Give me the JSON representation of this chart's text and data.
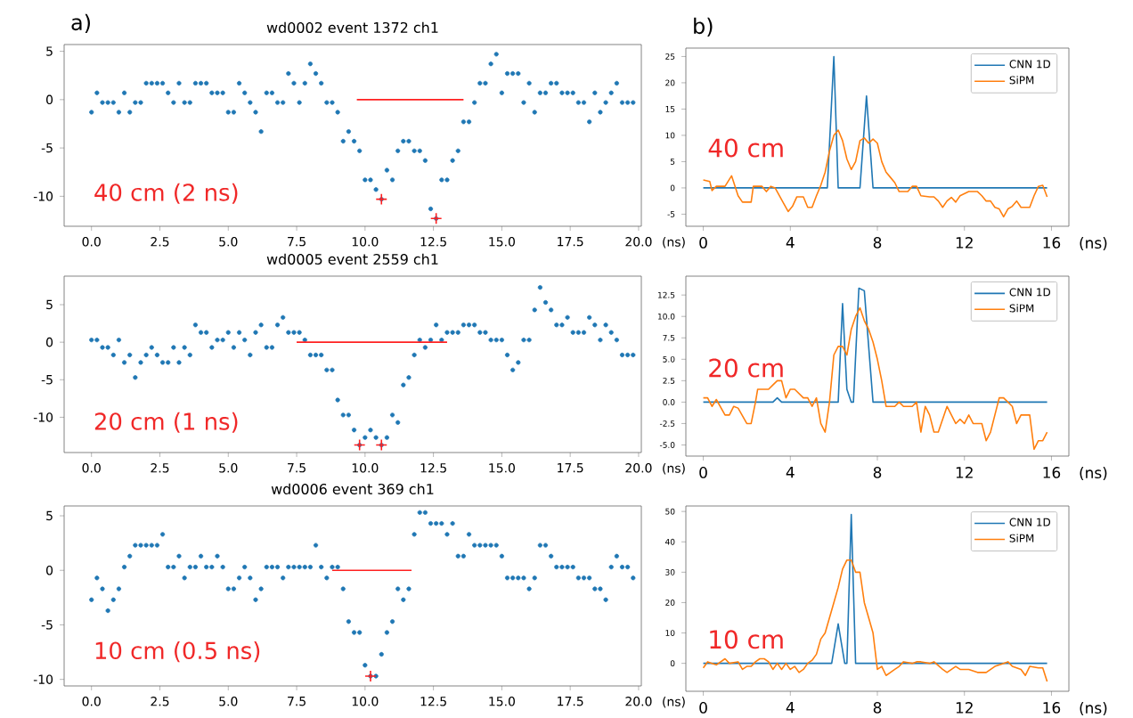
{
  "chart_data": [
    {
      "type": "scatter",
      "title": "wd0002 event 1372  ch1",
      "xlabel": "(ns)",
      "xlim": [
        -1,
        20.1
      ],
      "ylim": [
        -13.1,
        5.7
      ],
      "xticks": [
        {
          "value": 0,
          "label": "0.0"
        },
        2.5,
        {
          "value": 5,
          "label": "5.0"
        },
        7.5,
        {
          "value": 10,
          "label": "10.0"
        },
        12.5,
        {
          "value": 15,
          "label": "15.0"
        },
        17.5,
        {
          "value": 20,
          "label": "20.0"
        }
      ],
      "yticks": [
        -10,
        -5,
        0,
        5
      ],
      "x": [
        0,
        0.2,
        0.4,
        0.6,
        0.8,
        1,
        1.2,
        1.4,
        1.6,
        1.8,
        2,
        2.2,
        2.4,
        2.6,
        2.8,
        3,
        3.2,
        3.4,
        3.6,
        3.8,
        4,
        4.2,
        4.4,
        4.6,
        4.8,
        5,
        5.2,
        5.4,
        5.6,
        5.8,
        6,
        6.2,
        6.4,
        6.6,
        6.8,
        7,
        7.2,
        7.4,
        7.6,
        7.8,
        8,
        8.2,
        8.4,
        8.6,
        8.8,
        9,
        9.2,
        9.4,
        9.6,
        9.8,
        10,
        10.2,
        10.4,
        10.6,
        10.8,
        11,
        11.2,
        11.4,
        11.6,
        11.8,
        12,
        12.2,
        12.4,
        12.6,
        12.8,
        13,
        13.2,
        13.4,
        13.6,
        13.8,
        14,
        14.2,
        14.4,
        14.6,
        14.8,
        15,
        15.2,
        15.4,
        15.6,
        15.8,
        16,
        16.2,
        16.4,
        16.6,
        16.8,
        17,
        17.2,
        17.4,
        17.6,
        17.8,
        18,
        18.2,
        18.4,
        18.6,
        18.8,
        19,
        19.2,
        19.4,
        19.6,
        19.8
      ],
      "series": [
        {
          "color": "#1f77b4",
          "marker": "circle",
          "values": [
            -1.3,
            0.7,
            -0.3,
            -0.3,
            -0.3,
            -1.3,
            0.7,
            -1.3,
            -0.3,
            -0.3,
            1.7,
            1.7,
            1.7,
            1.7,
            0.7,
            -0.3,
            1.7,
            -0.3,
            -0.3,
            1.7,
            1.7,
            1.7,
            0.7,
            0.7,
            0.7,
            -1.3,
            -1.3,
            1.7,
            0.7,
            -0.3,
            -1.3,
            -3.3,
            0.7,
            0.7,
            -0.3,
            -0.3,
            2.7,
            1.7,
            -0.3,
            1.7,
            3.7,
            2.7,
            1.7,
            -0.3,
            -0.3,
            -1.3,
            -4.3,
            -3.3,
            -4.3,
            -5.3,
            -8.3,
            -8.3,
            -9.3,
            -10.3,
            -7.3,
            -8.3,
            -5.3,
            -4.3,
            -4.3,
            -5.3,
            -5.3,
            -6.3,
            -11.3,
            -12.3,
            -8.3,
            -8.3,
            -6.3,
            -5.3,
            -2.3,
            -2.3,
            -0.3,
            1.7,
            1.7,
            3.7,
            4.7,
            0.7,
            2.7,
            2.7,
            2.7,
            -0.3,
            1.7,
            -1.3,
            0.7,
            0.7,
            1.7,
            1.7,
            0.7,
            0.7,
            0.7,
            -0.3,
            -0.3,
            -2.3,
            0.7,
            -1.3,
            -0.3,
            0.7,
            1.7,
            -0.3,
            -0.3,
            -0.3
          ]
        },
        {
          "type": "line",
          "color": "#ff2020",
          "x": [
            9.7,
            13.6
          ],
          "values": [
            0,
            0
          ]
        },
        {
          "color": "#ff2020",
          "marker": "cross",
          "x": [
            10.6,
            12.6
          ],
          "values": [
            -10.3,
            -12.3
          ]
        }
      ],
      "annotations": [
        "a)",
        "40 cm (2 ns)"
      ]
    },
    {
      "type": "line",
      "xlabel": "(ns)",
      "xlim": [
        -0.8,
        16.8
      ],
      "ylim": [
        -7.3,
        26.6
      ],
      "xticks": [
        0,
        4,
        8,
        12,
        16
      ],
      "yticks": [
        -5,
        0,
        5,
        10,
        15,
        20,
        25
      ],
      "legend": "top right",
      "series": [
        {
          "name": "CNN 1D",
          "color": "#1f77b4",
          "x": [
            0,
            5.7,
            6.0,
            6.2,
            7.2,
            7.5,
            7.8,
            15.8
          ],
          "values": [
            0,
            0,
            25,
            0,
            0,
            17.5,
            0,
            0
          ]
        },
        {
          "name": "SiPM",
          "color": "#ff7f0e",
          "x": [
            0,
            0.3,
            0.4,
            0.6,
            1.0,
            1.3,
            1.6,
            1.8,
            2.2,
            2.3,
            2.7,
            2.9,
            3.1,
            3.3,
            3.7,
            3.9,
            4.1,
            4.3,
            4.6,
            4.8,
            5.0,
            5.2,
            5.4,
            5.6,
            5.8,
            6.0,
            6.2,
            6.4,
            6.6,
            6.8,
            7.0,
            7.2,
            7.4,
            7.6,
            7.8,
            8.0,
            8.2,
            8.4,
            8.6,
            8.8,
            9.0,
            9.4,
            9.6,
            9.8,
            10.0,
            10.4,
            10.6,
            10.8,
            11.0,
            11.2,
            11.4,
            11.6,
            11.8,
            12.2,
            12.6,
            12.8,
            13.0,
            13.2,
            13.4,
            13.6,
            13.8,
            14.0,
            14.2,
            14.4,
            14.6,
            15.0,
            15.2,
            15.4,
            15.6,
            15.8
          ],
          "values": [
            1.5,
            1.2,
            -0.5,
            0.3,
            0.3,
            2.3,
            -1.5,
            -2.7,
            -2.7,
            0.3,
            0.3,
            -0.7,
            0.3,
            0,
            -3,
            -4.5,
            -3.5,
            -1.7,
            -1.7,
            -3.7,
            -3.7,
            -1.5,
            0.5,
            3,
            7,
            10,
            11,
            9,
            5.5,
            3.5,
            5,
            9,
            9.5,
            8.5,
            9.3,
            8.5,
            5,
            3,
            2,
            1,
            -0.7,
            -0.7,
            0.3,
            0.3,
            -1.5,
            -1.7,
            -1.7,
            -2.5,
            -3.7,
            -2.5,
            -1.8,
            -2.7,
            -1.5,
            -0.7,
            -0.7,
            -1.5,
            -2.5,
            -2.5,
            -3.7,
            -4,
            -5.5,
            -4,
            -3.5,
            -2.5,
            -3.7,
            -3.7,
            -1.5,
            0.3,
            0.5,
            -1.7
          ]
        }
      ],
      "annotations": [
        "b)",
        "40 cm"
      ]
    },
    {
      "type": "scatter",
      "title": "wd0005 event 2559  ch1",
      "xlabel": "(ns)",
      "xlim": [
        -1,
        20.1
      ],
      "ylim": [
        -14.7,
        8.8
      ],
      "xticks": [
        {
          "value": 0,
          "label": "0.0"
        },
        2.5,
        {
          "value": 5,
          "label": "5.0"
        },
        7.5,
        {
          "value": 10,
          "label": "10.0"
        },
        12.5,
        {
          "value": 15,
          "label": "15.0"
        },
        17.5,
        {
          "value": 20,
          "label": "20.0"
        }
      ],
      "yticks": [
        -10,
        -5,
        0,
        5
      ],
      "x": [
        0,
        0.2,
        0.4,
        0.6,
        0.8,
        1,
        1.2,
        1.4,
        1.6,
        1.8,
        2,
        2.2,
        2.4,
        2.6,
        2.8,
        3,
        3.2,
        3.4,
        3.6,
        3.8,
        4,
        4.2,
        4.4,
        4.6,
        4.8,
        5,
        5.2,
        5.4,
        5.6,
        5.8,
        6,
        6.2,
        6.4,
        6.6,
        6.8,
        7,
        7.2,
        7.4,
        7.6,
        7.8,
        8,
        8.2,
        8.4,
        8.6,
        8.8,
        9,
        9.2,
        9.4,
        9.6,
        9.8,
        10,
        10.2,
        10.4,
        10.6,
        10.8,
        11,
        11.2,
        11.4,
        11.6,
        11.8,
        12,
        12.2,
        12.4,
        12.6,
        12.8,
        13,
        13.2,
        13.4,
        13.6,
        13.8,
        14,
        14.2,
        14.4,
        14.6,
        14.8,
        15,
        15.2,
        15.4,
        15.6,
        15.8,
        16,
        16.2,
        16.4,
        16.6,
        16.8,
        17,
        17.2,
        17.4,
        17.6,
        17.8,
        18,
        18.2,
        18.4,
        18.6,
        18.8,
        19,
        19.2,
        19.4,
        19.6,
        19.8
      ],
      "series": [
        {
          "color": "#1f77b4",
          "marker": "circle",
          "values": [
            0.3,
            0.3,
            -0.7,
            -0.7,
            -1.7,
            0.3,
            -2.7,
            -1.7,
            -4.7,
            -2.7,
            -1.7,
            -0.7,
            -1.7,
            -2.7,
            -2.7,
            -0.7,
            -2.7,
            -0.7,
            -1.7,
            2.3,
            1.3,
            1.3,
            -0.7,
            0.3,
            0.3,
            1.3,
            -0.7,
            1.3,
            0.3,
            -1.7,
            1.3,
            2.3,
            -0.7,
            -0.7,
            2.3,
            3.3,
            1.3,
            1.3,
            1.3,
            0.3,
            -1.7,
            -1.7,
            -1.7,
            -3.7,
            -3.7,
            -7.7,
            -9.7,
            -9.7,
            -11.7,
            -13.7,
            -12.7,
            -11.7,
            -12.7,
            -13.7,
            -12.7,
            -9.7,
            -10.7,
            -5.7,
            -4.7,
            -1.7,
            0.3,
            -0.7,
            0.3,
            2.3,
            0.3,
            1.3,
            1.3,
            1.3,
            2.3,
            2.3,
            2.3,
            1.3,
            1.3,
            0.3,
            0.3,
            0.3,
            -1.7,
            -3.7,
            -2.7,
            0.3,
            0.3,
            4.3,
            7.3,
            5.3,
            4.3,
            2.3,
            2.3,
            3.3,
            1.3,
            1.3,
            1.3,
            3.3,
            2.3,
            0.3,
            2.3,
            1.3,
            0.3,
            -1.7,
            -1.7,
            -1.7
          ]
        },
        {
          "type": "line",
          "color": "#ff2020",
          "x": [
            7.5,
            13.0
          ],
          "values": [
            0,
            0
          ]
        },
        {
          "color": "#ff2020",
          "marker": "cross",
          "x": [
            9.8,
            10.6
          ],
          "values": [
            -13.7,
            -13.7
          ]
        }
      ],
      "annotations": [
        "20 cm (1 ns)"
      ]
    },
    {
      "type": "line",
      "xlabel": "(ns)",
      "xlim": [
        -0.8,
        16.8
      ],
      "ylim": [
        -6.3,
        14.7
      ],
      "xticks": [
        0,
        4,
        8,
        12,
        16
      ],
      "yticks": [
        {
          "value": -5,
          "label": "-5.0"
        },
        -2.5,
        {
          "value": 0,
          "label": "0.0"
        },
        2.5,
        {
          "value": 5,
          "label": "5.0"
        },
        7.5,
        {
          "value": 10,
          "label": "10.0"
        },
        12.5
      ],
      "legend": "top right",
      "series": [
        {
          "name": "CNN 1D",
          "color": "#1f77b4",
          "x": [
            0,
            3.2,
            3.4,
            3.6,
            6.2,
            6.4,
            6.6,
            6.8,
            6.9,
            7.15,
            7.4,
            7.8,
            15.8
          ],
          "values": [
            0,
            0,
            0.5,
            0,
            0,
            11.5,
            1.5,
            0,
            0,
            13.3,
            13,
            0,
            0
          ]
        },
        {
          "name": "SiPM",
          "color": "#ff7f0e",
          "x": [
            0,
            0.2,
            0.4,
            0.6,
            1.0,
            1.2,
            1.4,
            1.6,
            2.0,
            2.2,
            2.4,
            2.5,
            3.0,
            3.2,
            3.4,
            3.6,
            3.8,
            4.0,
            4.2,
            4.6,
            4.8,
            5.0,
            5.2,
            5.4,
            5.6,
            5.8,
            6.0,
            6.2,
            6.4,
            6.6,
            6.8,
            7.0,
            7.2,
            7.4,
            7.6,
            7.8,
            8.0,
            8.2,
            8.4,
            8.8,
            9.0,
            9.2,
            9.6,
            9.8,
            10.0,
            10.2,
            10.4,
            10.6,
            10.8,
            11.2,
            11.6,
            11.8,
            12.0,
            12.2,
            12.4,
            12.8,
            13.0,
            13.2,
            13.6,
            13.8,
            14.2,
            14.4,
            14.6,
            15.0,
            15.2,
            15.4,
            15.6,
            15.8
          ],
          "values": [
            0.5,
            0.5,
            -0.5,
            0.3,
            -1.5,
            -1.5,
            -0.5,
            -0.7,
            -2.5,
            -2.5,
            0,
            1.5,
            1.5,
            2,
            2.5,
            2.5,
            0.5,
            1.5,
            1.5,
            0.5,
            0.5,
            -0.5,
            0.5,
            -2.5,
            -3.5,
            0,
            5.5,
            6.5,
            6.5,
            5.5,
            8.5,
            10,
            11,
            9.5,
            8.5,
            7,
            5,
            2.5,
            -0.5,
            -0.5,
            0,
            -0.5,
            -0.5,
            0,
            -3.5,
            -0.5,
            -1.5,
            -3.5,
            -3.5,
            -0.5,
            -2.5,
            -2,
            -2.5,
            -1.5,
            -2.5,
            -2.5,
            -4.5,
            -3.5,
            0.5,
            0.5,
            -0.5,
            -2.5,
            -1.5,
            -1.5,
            -5.5,
            -4.5,
            -4.5,
            -3.5
          ]
        }
      ],
      "annotations": [
        "20 cm"
      ]
    },
    {
      "type": "scatter",
      "title": "wd0006 event 369  ch1",
      "xlabel": "(ns)",
      "xlim": [
        -1,
        20.1
      ],
      "ylim": [
        -10.6,
        5.9
      ],
      "xticks": [
        {
          "value": 0,
          "label": "0.0"
        },
        2.5,
        {
          "value": 5,
          "label": "5.0"
        },
        7.5,
        {
          "value": 10,
          "label": "10.0"
        },
        12.5,
        {
          "value": 15,
          "label": "15.0"
        },
        17.5,
        {
          "value": 20,
          "label": "20.0"
        }
      ],
      "yticks": [
        -10,
        -5,
        0,
        5
      ],
      "x": [
        0,
        0.2,
        0.4,
        0.6,
        0.8,
        1,
        1.2,
        1.4,
        1.6,
        1.8,
        2,
        2.2,
        2.4,
        2.6,
        2.8,
        3,
        3.2,
        3.4,
        3.6,
        3.8,
        4,
        4.2,
        4.4,
        4.6,
        4.8,
        5,
        5.2,
        5.4,
        5.6,
        5.8,
        6,
        6.2,
        6.4,
        6.6,
        6.8,
        7,
        7.2,
        7.4,
        7.6,
        7.8,
        8,
        8.2,
        8.4,
        8.6,
        8.8,
        9,
        9.2,
        9.4,
        9.6,
        9.8,
        10,
        10.2,
        10.4,
        10.6,
        10.8,
        11,
        11.2,
        11.4,
        11.6,
        11.8,
        12,
        12.2,
        12.4,
        12.6,
        12.8,
        13,
        13.2,
        13.4,
        13.6,
        13.8,
        14,
        14.2,
        14.4,
        14.6,
        14.8,
        15,
        15.2,
        15.4,
        15.6,
        15.8,
        16,
        16.2,
        16.4,
        16.6,
        16.8,
        17,
        17.2,
        17.4,
        17.6,
        17.8,
        18,
        18.2,
        18.4,
        18.6,
        18.8,
        19,
        19.2,
        19.4,
        19.6,
        19.8
      ],
      "series": [
        {
          "color": "#1f77b4",
          "marker": "circle",
          "values": [
            -2.7,
            -0.7,
            -1.7,
            -3.7,
            -2.7,
            -1.7,
            0.3,
            1.3,
            2.3,
            2.3,
            2.3,
            2.3,
            2.3,
            3.3,
            0.3,
            0.3,
            1.3,
            -0.7,
            0.3,
            0.3,
            1.3,
            0.3,
            0.3,
            1.3,
            0.3,
            -1.7,
            -1.7,
            -0.7,
            0.3,
            -0.7,
            -2.7,
            -1.7,
            0.3,
            0.3,
            0.3,
            -0.7,
            0.3,
            0.3,
            0.3,
            0.3,
            0.3,
            2.3,
            0.3,
            -0.7,
            0.3,
            0.3,
            -1.7,
            -4.7,
            -5.7,
            -5.7,
            -8.7,
            -9.7,
            -9.7,
            -7.7,
            -5.7,
            -4.7,
            -1.7,
            -2.7,
            -1.7,
            3.3,
            5.3,
            5.3,
            4.3,
            4.3,
            4.3,
            3.3,
            4.3,
            1.3,
            1.3,
            3.3,
            2.3,
            2.3,
            2.3,
            2.3,
            2.3,
            1.3,
            -0.7,
            -0.7,
            -0.7,
            -0.7,
            -1.7,
            -0.7,
            2.3,
            2.3,
            1.3,
            0.3,
            0.3,
            0.3,
            0.3,
            -0.7,
            -0.7,
            -0.7,
            -1.7,
            -1.7,
            -2.7,
            0.3,
            1.3,
            0.3,
            0.3,
            -0.7
          ]
        },
        {
          "type": "line",
          "color": "#ff2020",
          "x": [
            8.8,
            11.7
          ],
          "values": [
            0,
            0
          ]
        },
        {
          "color": "#ff2020",
          "marker": "cross",
          "x": [
            10.2
          ],
          "values": [
            -9.7
          ]
        }
      ],
      "annotations": [
        "10 cm (0.5 ns)"
      ]
    },
    {
      "type": "line",
      "xlabel": "(ns)",
      "xlim": [
        -0.8,
        16.8
      ],
      "ylim": [
        -9.2,
        51.8
      ],
      "xticks": [
        0,
        4,
        8,
        12,
        16
      ],
      "yticks": [
        0,
        10,
        20,
        30,
        40,
        50
      ],
      "legend": "top right",
      "series": [
        {
          "name": "CNN 1D",
          "color": "#1f77b4",
          "x": [
            0,
            5.9,
            6.2,
            6.5,
            6.6,
            6.8,
            7.0,
            15.8
          ],
          "values": [
            0,
            0,
            13,
            0,
            0,
            49,
            0,
            0
          ]
        },
        {
          "name": "SiPM",
          "color": "#ff7f0e",
          "x": [
            0,
            0.2,
            0.4,
            0.6,
            1.0,
            1.2,
            1.6,
            1.8,
            2.0,
            2.2,
            2.4,
            2.6,
            2.8,
            3.0,
            3.2,
            3.4,
            3.6,
            3.8,
            4.0,
            4.2,
            4.4,
            4.6,
            4.8,
            5.0,
            5.2,
            5.4,
            5.6,
            5.8,
            6.0,
            6.2,
            6.4,
            6.6,
            6.8,
            7.0,
            7.2,
            7.4,
            7.6,
            7.8,
            8.0,
            8.2,
            8.4,
            8.6,
            8.8,
            9.0,
            9.2,
            9.6,
            9.8,
            10.0,
            10.4,
            10.6,
            11.0,
            11.2,
            11.6,
            11.8,
            12.2,
            12.6,
            13.0,
            13.4,
            13.8,
            14.0,
            14.2,
            14.6,
            14.8,
            15.0,
            15.4,
            15.6,
            15.8
          ],
          "values": [
            -1.5,
            0.5,
            0,
            -0.5,
            1.5,
            0,
            0.5,
            -2,
            -1,
            -1,
            0.5,
            1.5,
            1.5,
            0.5,
            -2,
            0,
            -2,
            0,
            -2,
            -1,
            -3,
            -2,
            0,
            1,
            3,
            8,
            10,
            15,
            20,
            25,
            31,
            34,
            34,
            30,
            30,
            20,
            15,
            10,
            -2,
            -1,
            -4,
            -3,
            -2,
            -1,
            0.5,
            0,
            0.5,
            0.5,
            0,
            0.5,
            -2,
            -3,
            -1,
            -2,
            -2,
            -3,
            -3,
            -1,
            0,
            0.5,
            -1,
            -2,
            -4,
            -1,
            -1.5,
            -1.5,
            -6
          ]
        }
      ],
      "annotations": [
        "10 cm"
      ]
    }
  ]
}
